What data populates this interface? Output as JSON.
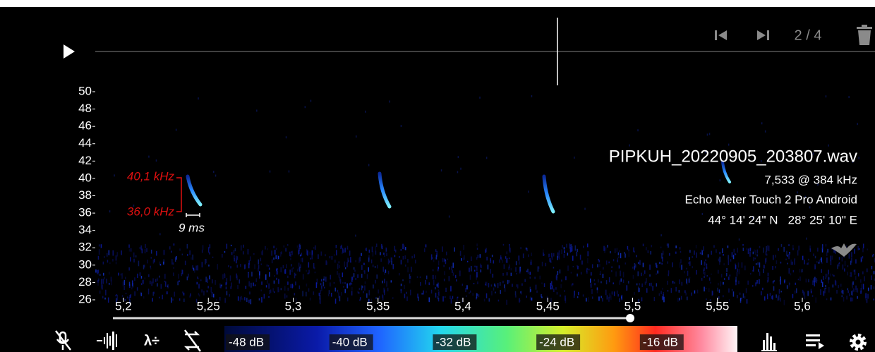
{
  "player": {
    "page": "2 / 4"
  },
  "frequency_axis": {
    "labels": [
      "50",
      "48",
      "46",
      "44",
      "42",
      "40",
      "38",
      "36",
      "34",
      "32",
      "30",
      "28",
      "26"
    ]
  },
  "time_axis": {
    "labels": [
      "5,2",
      "5,25",
      "5,3",
      "5,35",
      "5,4",
      "5,45",
      "5,5",
      "5,55",
      "5,6"
    ]
  },
  "measurement": {
    "high": "40,1 kHz",
    "low": "36,0 kHz",
    "duration": "9 ms"
  },
  "file_info": {
    "name": "PIPKUH_20220905_203807.wav",
    "detail": "7,533 @ 384 kHz",
    "device": "Echo Meter Touch 2 Pro Android",
    "location": "44° 14' 24\" N   28° 25' 10\" E"
  },
  "color_scale": {
    "labels": [
      "-48 dB",
      "-40 dB",
      "-32 dB",
      "-24 dB",
      "-16 dB"
    ]
  },
  "toolbar": {
    "lambda": "λ÷"
  }
}
